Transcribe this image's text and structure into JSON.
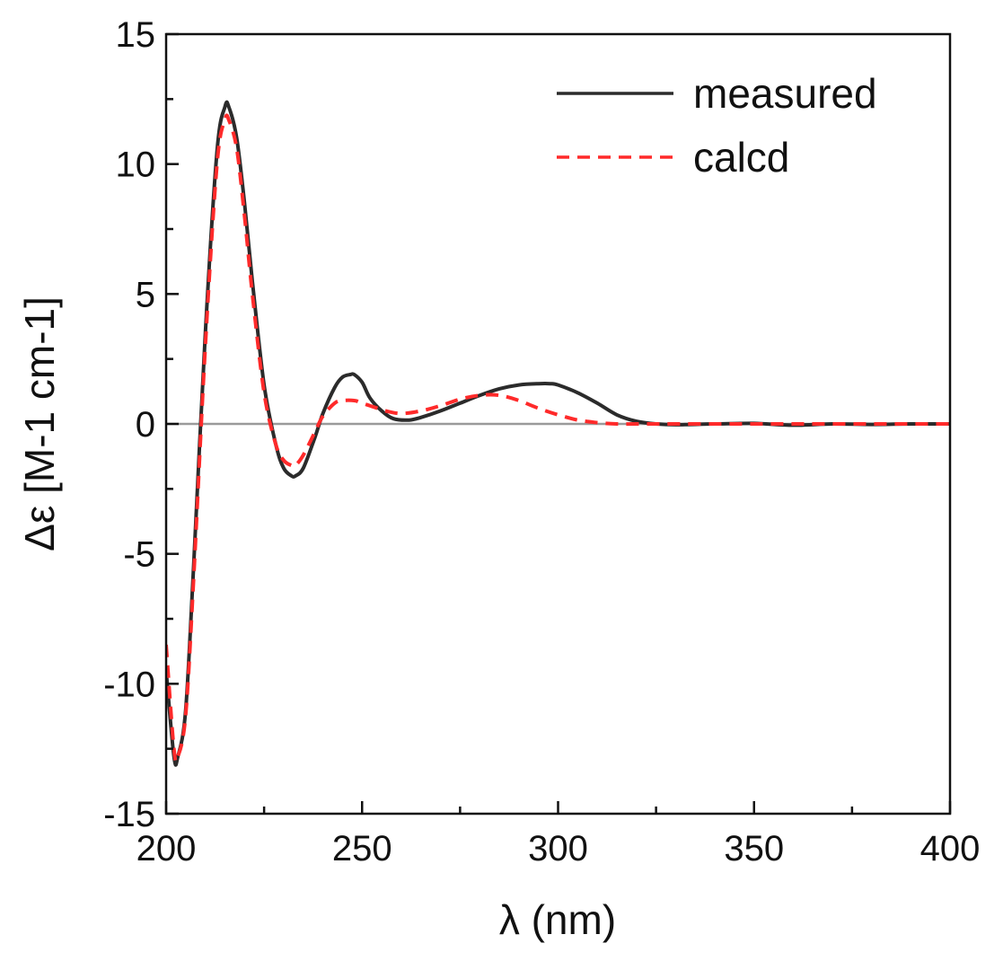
{
  "chart_data": {
    "type": "line",
    "title": "",
    "xlabel": "λ (nm)",
    "ylabel": "Δε [M-1 cm-1]",
    "xlim": [
      200,
      400
    ],
    "ylim": [
      -15,
      15
    ],
    "x_ticks": [
      200,
      250,
      300,
      350,
      400
    ],
    "y_ticks": [
      -15,
      -10,
      -5,
      0,
      5,
      10,
      15
    ],
    "x_tick_labels": [
      "200",
      "250",
      "300",
      "350",
      "400"
    ],
    "y_tick_labels": [
      "-15",
      "-10",
      "-5",
      "0",
      "5",
      "10",
      "15"
    ],
    "grid": false,
    "zero_line": true,
    "legend_position": "top-right",
    "series": [
      {
        "name": "measured",
        "color": "#2b2b2b",
        "style": "solid",
        "x": [
          200,
          202,
          203,
          205,
          207,
          210,
          213,
          215,
          216,
          218,
          220,
          222,
          225,
          228,
          230,
          232,
          233,
          235,
          238,
          240,
          243,
          245,
          247,
          248,
          250,
          252,
          255,
          258,
          262,
          265,
          270,
          275,
          280,
          285,
          290,
          295,
          298,
          300,
          305,
          310,
          315,
          320,
          325,
          330,
          340,
          350,
          360,
          370,
          380,
          390,
          400
        ],
        "y": [
          -9.5,
          -12.8,
          -12.8,
          -11.0,
          -5.5,
          3.5,
          10.5,
          12.2,
          12.2,
          11.0,
          8.5,
          5.5,
          1.5,
          -0.8,
          -1.7,
          -2.0,
          -2.0,
          -1.7,
          -0.5,
          0.4,
          1.4,
          1.8,
          1.9,
          1.9,
          1.6,
          1.0,
          0.5,
          0.2,
          0.15,
          0.25,
          0.5,
          0.8,
          1.1,
          1.35,
          1.5,
          1.55,
          1.55,
          1.5,
          1.2,
          0.8,
          0.35,
          0.1,
          0.0,
          -0.03,
          0.0,
          0.02,
          -0.05,
          0.0,
          -0.02,
          0.0,
          0.0
        ]
      },
      {
        "name": "calcd",
        "color": "#ff2a2a",
        "style": "dashed",
        "x": [
          200,
          202,
          203,
          205,
          207,
          210,
          213,
          215,
          216,
          218,
          220,
          222,
          225,
          228,
          230,
          232,
          233,
          235,
          238,
          240,
          243,
          245,
          248,
          250,
          253,
          256,
          260,
          265,
          270,
          275,
          280,
          285,
          290,
          295,
          300,
          305,
          310,
          315,
          320,
          325,
          330,
          340,
          350,
          360,
          370,
          380,
          390,
          400
        ],
        "y": [
          -8.5,
          -12.5,
          -12.8,
          -11.2,
          -6.0,
          3.0,
          10.0,
          11.7,
          11.7,
          10.6,
          8.0,
          5.0,
          1.2,
          -0.8,
          -1.4,
          -1.6,
          -1.6,
          -1.2,
          -0.3,
          0.3,
          0.8,
          0.9,
          0.9,
          0.8,
          0.65,
          0.5,
          0.4,
          0.5,
          0.7,
          0.95,
          1.1,
          1.1,
          0.9,
          0.6,
          0.35,
          0.15,
          0.05,
          0.0,
          0.0,
          0.0,
          0.0,
          0.0,
          0.0,
          0.0,
          0.0,
          0.0,
          0.0,
          0.0
        ]
      }
    ]
  }
}
